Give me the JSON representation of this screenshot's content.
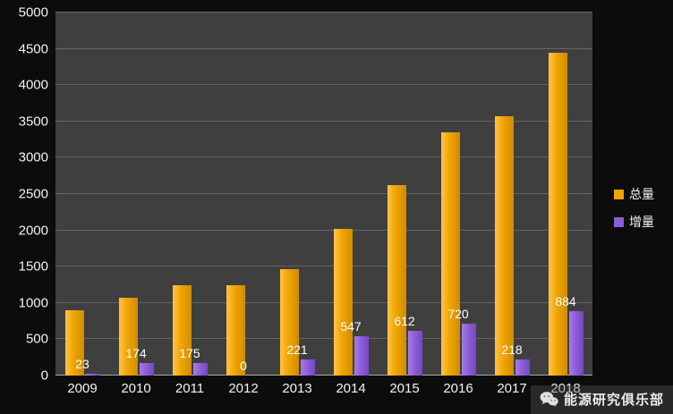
{
  "chart_data": {
    "type": "bar",
    "categories": [
      "2009",
      "2010",
      "2011",
      "2012",
      "2013",
      "2014",
      "2015",
      "2016",
      "2017",
      "2018"
    ],
    "series": [
      {
        "name": "总量",
        "color": "#F0A400",
        "values": [
          900,
          1074,
          1249,
          1249,
          1470,
          2017,
          2629,
          3349,
          3567,
          4451
        ],
        "data_labels": false
      },
      {
        "name": "增量",
        "color": "#8B5CD6",
        "values": [
          23,
          174,
          175,
          0,
          221,
          547,
          612,
          720,
          218,
          884
        ],
        "data_labels": true
      }
    ],
    "title": "",
    "xlabel": "",
    "ylabel": "",
    "ylim": [
      0,
      5000
    ],
    "ytick_step": 500,
    "grid": true,
    "legend_position": "right",
    "plot_background": "#3f3f3f",
    "page_background": "#0c0c0c"
  },
  "watermark": {
    "icon": "wechat-icon",
    "text": "能源研究俱乐部"
  }
}
